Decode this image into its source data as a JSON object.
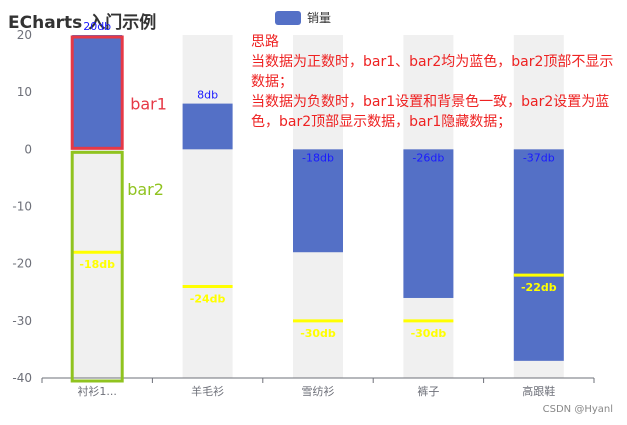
{
  "header": {
    "title": "ECharts 入门示例"
  },
  "legend": {
    "label": "销量",
    "color": "#5470c6"
  },
  "watermark": "CSDN @Hyanl",
  "note": {
    "lines": [
      "思路",
      "当数据为正数时，bar1、bar2均为蓝色，bar2顶部不显示数据；",
      "当数据为负数时，bar1设置和背景色一致，bar2设置为蓝色，bar2顶部显示数据，bar1隐藏数据；"
    ]
  },
  "annotations": {
    "bar1_label": "bar1",
    "bar2_label": "bar2"
  },
  "colors": {
    "bar": "#5470c6",
    "background_bar": "#f0f0f0",
    "data_label_blue": "#1a1aff",
    "negative_marker": "#ffff00",
    "annotation_red": "#e63946",
    "annotation_green": "#90c31f",
    "axis": "#6e7079",
    "grid": "#e0e6f1"
  },
  "chart_data": {
    "type": "bar",
    "categories": [
      "衬衫1...",
      "羊毛衫",
      "雪纺衫",
      "裤子",
      "高跟鞋"
    ],
    "ylim": [
      -40,
      20
    ],
    "yticks": [
      20,
      10,
      0,
      -10,
      -20,
      -30,
      -40
    ],
    "series": [
      {
        "name": "销量",
        "values": [
          20,
          8,
          -18,
          -26,
          -37
        ],
        "top_labels": [
          "20db",
          "8db",
          "-18db",
          "-26db",
          "-37db"
        ]
      }
    ],
    "negative_markers": [
      {
        "category": "衬衫1...",
        "value": -18,
        "label": "-18db"
      },
      {
        "category": "羊毛衫",
        "value": -24,
        "label": "-24db"
      },
      {
        "category": "雪纺衫",
        "value": -30,
        "label": "-30db"
      },
      {
        "category": "裤子",
        "value": -30,
        "label": "-30db"
      },
      {
        "category": "高跟鞋",
        "value": -22,
        "label": "-22db"
      }
    ],
    "legend_position": "top-center",
    "grid": false
  }
}
